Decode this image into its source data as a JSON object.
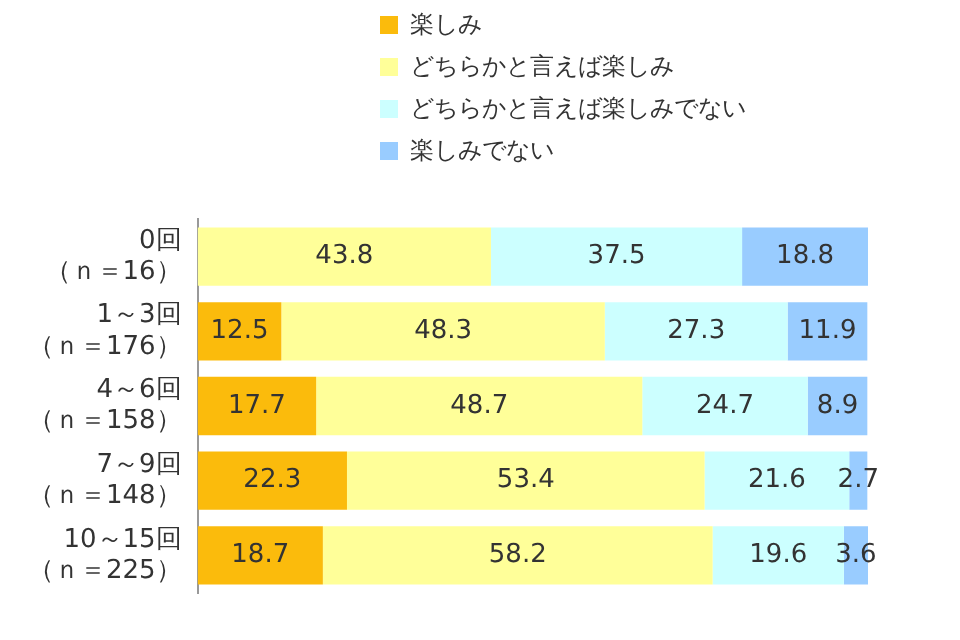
{
  "chart_data": {
    "type": "bar",
    "orientation": "horizontal",
    "stacked": true,
    "data_labels": true,
    "legend": "top",
    "tick_labels": "y",
    "categories": [
      "0回（ｎ＝16）",
      "1～3回（ｎ＝176）",
      "4～6回（ｎ＝158）",
      "7～9回（ｎ＝148）",
      "10～15回（ｎ＝225）"
    ],
    "series": [
      {
        "name": "楽しみ",
        "color": "#fbbb0c",
        "values": [
          null,
          12.5,
          17.7,
          22.3,
          18.7
        ]
      },
      {
        "name": "どちらかと言えば楽しみ",
        "color": "#ffff99",
        "values": [
          43.8,
          48.3,
          48.7,
          53.4,
          58.2
        ]
      },
      {
        "name": "どちらかと言えば楽しみでない",
        "color": "#ccffff",
        "values": [
          37.5,
          27.3,
          24.7,
          21.6,
          19.6
        ]
      },
      {
        "name": "楽しみでない",
        "color": "#99ccff",
        "values": [
          18.8,
          11.9,
          8.9,
          2.7,
          3.6
        ]
      }
    ]
  }
}
